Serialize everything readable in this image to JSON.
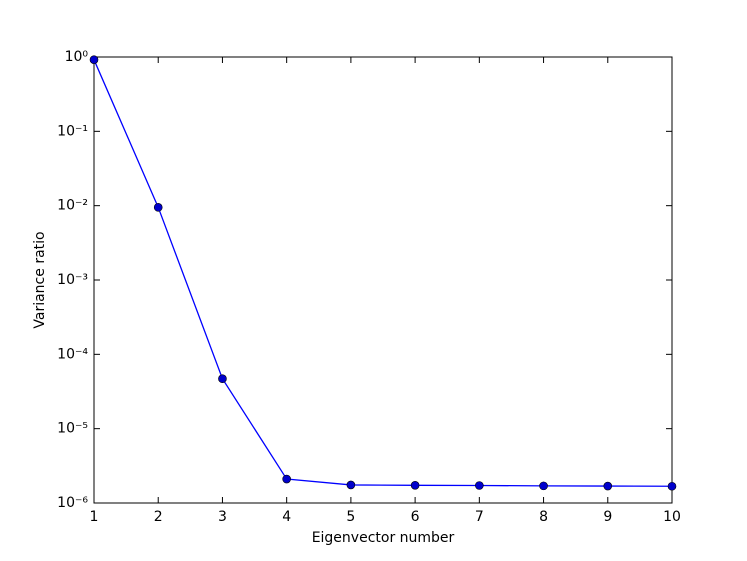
{
  "chart_data": {
    "type": "line",
    "x_label": "Eigenvector number",
    "y_label": "Variance ratio",
    "x": [
      1,
      2,
      3,
      4,
      5,
      6,
      7,
      8,
      9,
      10
    ],
    "series": [
      {
        "color": "#0000ff",
        "marker_color": "#0000cc",
        "values": [
          0.92,
          0.0095,
          4.7e-05,
          2.1e-06,
          1.75e-06,
          1.73e-06,
          1.72e-06,
          1.7e-06,
          1.69e-06,
          1.68e-06
        ]
      }
    ],
    "xlim": [
      1,
      10
    ],
    "xticks": [
      1,
      2,
      3,
      4,
      5,
      6,
      7,
      8,
      9,
      10
    ],
    "ylim": [
      1e-06,
      1
    ],
    "log_y": true,
    "yticks": [
      {
        "value": 1e-06,
        "label": "10⁻⁶"
      },
      {
        "value": 1e-05,
        "label": "10⁻⁵"
      },
      {
        "value": 0.0001,
        "label": "10⁻⁴"
      },
      {
        "value": 0.001,
        "label": "10⁻³"
      },
      {
        "value": 0.01,
        "label": "10⁻²"
      },
      {
        "value": 0.1,
        "label": "10⁻¹"
      },
      {
        "value": 1,
        "label": "10⁰"
      }
    ],
    "grid": false
  }
}
